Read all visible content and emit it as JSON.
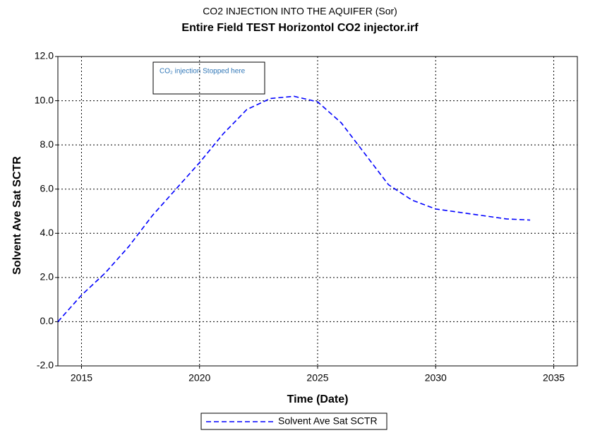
{
  "chart_data": {
    "type": "line",
    "title": "CO2 INJECTION INTO THE AQUIFER (Sor)",
    "subtitle": "Entire  Field TEST Horizontol CO2 injector.irf",
    "x_label": "Time (Date)",
    "y_label": "Solvent Ave Sat SCTR",
    "annotation": "CO₂ injection Stopped here",
    "x": [
      2014,
      2015,
      2016,
      2017,
      2018,
      2019,
      2020,
      2021,
      2022,
      2023,
      2024,
      2025,
      2026,
      2027,
      2028,
      2029,
      2030,
      2031,
      2032,
      2033,
      2034
    ],
    "series": [
      {
        "name": "Solvent Ave Sat SCTR",
        "color": "#0000ff",
        "values": [
          0,
          1.2,
          2.2,
          3.4,
          4.8,
          6.0,
          7.2,
          8.5,
          9.6,
          10.1,
          10.2,
          9.95,
          9.0,
          7.6,
          6.2,
          5.5,
          5.1,
          4.95,
          4.8,
          4.65,
          4.6
        ]
      }
    ],
    "xlim": [
      2014,
      2036
    ],
    "xticks": [
      2015,
      2020,
      2025,
      2030,
      2035
    ],
    "ylim": [
      -2,
      12
    ],
    "yticks": [
      {
        "value": -2,
        "label": "-2.0"
      },
      {
        "value": 0,
        "label": "0.0"
      },
      {
        "value": 2,
        "label": "2.0"
      },
      {
        "value": 4,
        "label": "4.0"
      },
      {
        "value": 6,
        "label": "6.0"
      },
      {
        "value": 8,
        "label": "8.0"
      },
      {
        "value": 10,
        "label": "10.0"
      },
      {
        "value": 12,
        "label": "12.0"
      }
    ],
    "grid": true,
    "legend": "bottom"
  }
}
